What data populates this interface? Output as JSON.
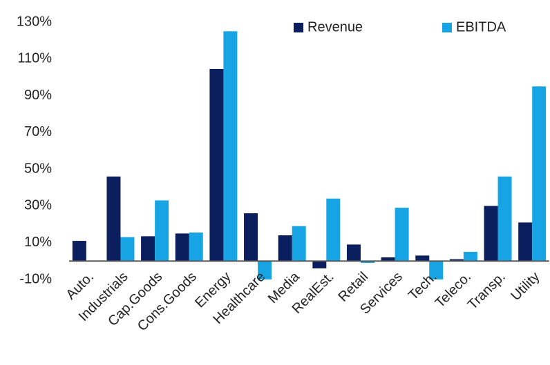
{
  "chart_data": {
    "type": "bar",
    "categories": [
      "Auto.",
      "Industrials",
      "Cap.Goods",
      "Cons.Goods",
      "Energy",
      "Healthcare",
      "Media",
      "RealEst.",
      "Retail",
      "Services",
      "Tech.",
      "Teleco.",
      "Transp.",
      "Utility"
    ],
    "series": [
      {
        "name": "Revenue",
        "color": "#0b1f5e",
        "values": [
          11,
          46,
          13.5,
          15,
          104.5,
          26,
          14,
          -4,
          9,
          2,
          3,
          1,
          30,
          21
        ]
      },
      {
        "name": "EBITDA",
        "color": "#16a4e4",
        "values": [
          0,
          13,
          33,
          15.5,
          125,
          -10,
          19,
          34,
          -1,
          29,
          -10,
          5,
          46,
          95
        ]
      }
    ],
    "ylim": [
      -10,
      130
    ],
    "yticks": [
      {
        "value": -10,
        "label": "-10%"
      },
      {
        "value": 10,
        "label": "10%"
      },
      {
        "value": 30,
        "label": "30%"
      },
      {
        "value": 50,
        "label": "50%"
      },
      {
        "value": 70,
        "label": "70%"
      },
      {
        "value": 90,
        "label": "90%"
      },
      {
        "value": 110,
        "label": "110%"
      },
      {
        "value": 130,
        "label": "130%"
      }
    ],
    "grid": false,
    "legend": "top"
  }
}
